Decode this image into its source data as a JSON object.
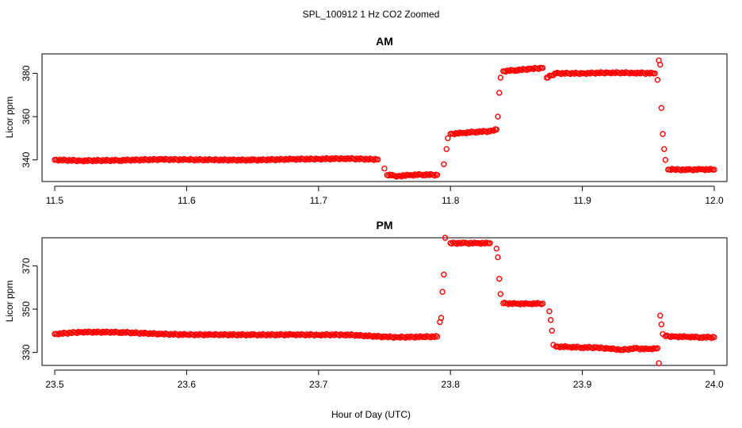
{
  "page_title": "SPL_100912  1 Hz CO2 Zoomed",
  "xlabel": "Hour of Day (UTC)",
  "colors": {
    "points": "#ff0000",
    "axis": "#000000",
    "background": "#ffffff"
  },
  "chart_data": [
    {
      "type": "scatter",
      "title": "AM",
      "ylabel": "Licor ppm",
      "xlim": [
        11.5,
        12.0
      ],
      "ylim": [
        330,
        389
      ],
      "xticks": [
        11.5,
        11.6,
        11.7,
        11.8,
        11.9,
        12.0
      ],
      "xtick_labels": [
        "11.5",
        "11.6",
        "11.7",
        "11.8",
        "11.9",
        "12.0"
      ],
      "yticks": [
        340,
        360,
        380
      ],
      "ytick_labels": [
        "340",
        "360",
        "380"
      ],
      "grid": false,
      "series": [
        {
          "marker": "open-circle",
          "x": [
            11.5,
            11.52,
            11.55,
            11.58,
            11.6,
            11.62,
            11.65,
            11.68,
            11.7,
            11.72,
            11.745,
            11.75,
            11.752,
            11.755,
            11.76,
            11.77,
            11.78,
            11.79,
            11.795,
            11.797,
            11.798,
            11.8,
            11.81,
            11.82,
            11.83,
            11.835,
            11.836,
            11.837,
            11.838,
            11.84,
            11.85,
            11.86,
            11.87,
            11.873,
            11.88,
            11.9,
            11.92,
            11.94,
            11.955,
            11.957,
            11.958,
            11.959,
            11.96,
            11.961,
            11.962,
            11.963,
            11.965,
            11.97,
            11.98,
            11.99,
            12.0
          ],
          "y": [
            340,
            339.6,
            339.8,
            340.2,
            340.1,
            340,
            339.9,
            340.3,
            340.4,
            340.6,
            340.2,
            336,
            333,
            332.8,
            332.5,
            333,
            333.2,
            333,
            338,
            345,
            350,
            352,
            352.5,
            353,
            353.2,
            354,
            360,
            371,
            378,
            381,
            381.5,
            382,
            382.5,
            378,
            380,
            380,
            380.3,
            380.2,
            380,
            377,
            386,
            384,
            364,
            352,
            345,
            340,
            335.5,
            335.5,
            335.4,
            335.6,
            335.5
          ]
        }
      ]
    },
    {
      "type": "scatter",
      "title": "PM",
      "ylabel": "Licor ppm",
      "xlim": [
        23.5,
        24.0
      ],
      "ylim": [
        324,
        383
      ],
      "xticks": [
        23.5,
        23.6,
        23.7,
        23.8,
        23.9,
        24.0
      ],
      "xtick_labels": [
        "23.5",
        "23.6",
        "23.7",
        "23.8",
        "23.9",
        "24.0"
      ],
      "yticks": [
        330,
        350,
        370
      ],
      "ytick_labels": [
        "330",
        "350",
        "370"
      ],
      "grid": false,
      "series": [
        {
          "marker": "open-circle",
          "x": [
            23.5,
            23.52,
            23.55,
            23.58,
            23.6,
            23.62,
            23.65,
            23.68,
            23.7,
            23.72,
            23.75,
            23.76,
            23.78,
            23.79,
            23.792,
            23.793,
            23.794,
            23.795,
            23.796,
            23.8,
            23.81,
            23.82,
            23.83,
            23.835,
            23.836,
            23.837,
            23.838,
            23.84,
            23.85,
            23.86,
            23.87,
            23.875,
            23.876,
            23.877,
            23.878,
            23.88,
            23.89,
            23.9,
            23.91,
            23.92,
            23.93,
            23.94,
            23.95,
            23.957,
            23.958,
            23.959,
            23.96,
            23.961,
            23.963,
            23.97,
            23.98,
            23.99,
            24.0
          ],
          "y": [
            338.5,
            339.4,
            339.3,
            338.5,
            338.2,
            338.2,
            338.1,
            338.2,
            338.1,
            338.2,
            337.2,
            337,
            337.2,
            337.3,
            344,
            346,
            358,
            366,
            383,
            380.5,
            380.5,
            380.5,
            380.5,
            378,
            374,
            364,
            357,
            352.7,
            352.5,
            352.5,
            352.6,
            349,
            345,
            340,
            333.5,
            332.7,
            332.5,
            332.3,
            332.2,
            331.8,
            331.2,
            331.8,
            331.5,
            332,
            325,
            347,
            343,
            338.5,
            337.5,
            337.3,
            337.2,
            337,
            337
          ]
        }
      ]
    }
  ]
}
